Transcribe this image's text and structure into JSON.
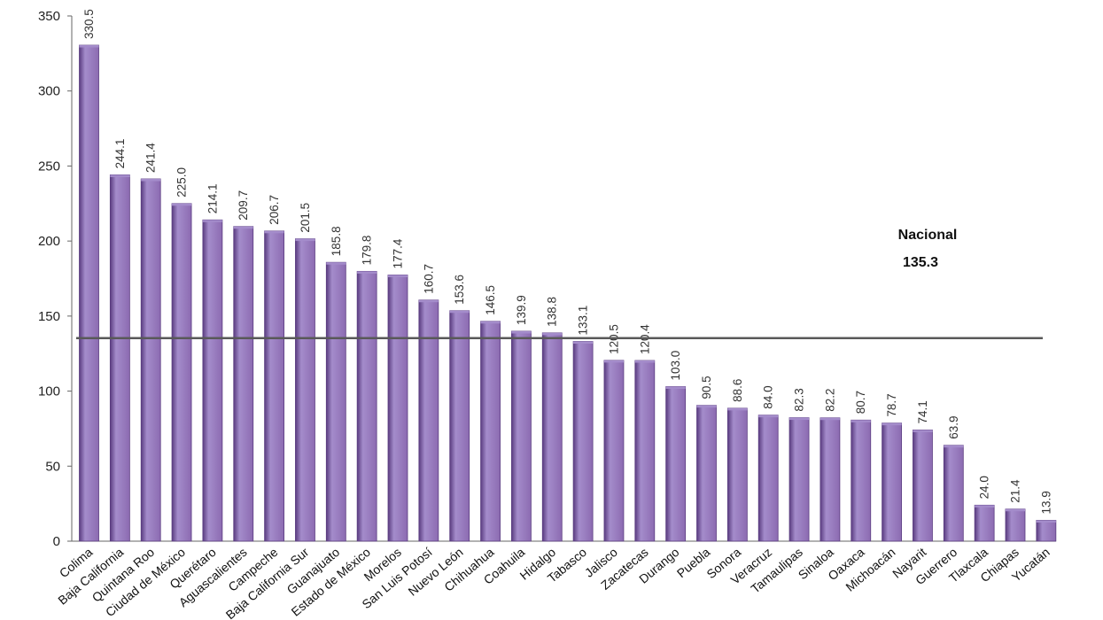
{
  "chart_data": {
    "type": "bar",
    "title": "",
    "xlabel": "",
    "ylabel": "",
    "ylim": [
      0,
      350
    ],
    "yticks": [
      0,
      50,
      100,
      150,
      200,
      250,
      300,
      350
    ],
    "grid": false,
    "categories": [
      "Colima",
      "Baja California",
      "Quintana Roo",
      "Ciudad de México",
      "Querétaro",
      "Aguascalientes",
      "Campeche",
      "Baja California Sur",
      "Guanajuato",
      "Estado de México",
      "Morelos",
      "San Luis Potosí",
      "Nuevo León",
      "Chihuahua",
      "Coahuila",
      "Hidalgo",
      "Tabasco",
      "Jalisco",
      "Zacatecas",
      "Durango",
      "Puebla",
      "Sonora",
      "Veracruz",
      "Tamaulipas",
      "Sinaloa",
      "Oaxaca",
      "Michoacán",
      "Nayarit",
      "Guerrero",
      "Tlaxcala",
      "Chiapas",
      "Yucatán"
    ],
    "values": [
      330.5,
      244.1,
      241.4,
      225.0,
      214.1,
      209.7,
      206.7,
      201.5,
      185.8,
      179.8,
      177.4,
      160.7,
      153.6,
      146.5,
      139.9,
      138.8,
      133.1,
      120.5,
      120.4,
      103.0,
      90.5,
      88.6,
      84.0,
      82.3,
      82.2,
      80.7,
      78.7,
      74.1,
      63.9,
      24.0,
      21.4,
      13.9
    ],
    "value_labels": [
      "330.5",
      "244.1",
      "241.4",
      "225.0",
      "214.1",
      "209.7",
      "206.7",
      "201.5",
      "185.8",
      "179.8",
      "177.4",
      "160.7",
      "153.6",
      "146.5",
      "139.9",
      "138.8",
      "133.1",
      "120.5",
      "120.4",
      "103.0",
      "90.5",
      "88.6",
      "84.0",
      "82.3",
      "82.2",
      "80.7",
      "78.7",
      "74.1",
      "63.9",
      "24.0",
      "21.4",
      "13.9"
    ],
    "reference_line": {
      "value": 135.3,
      "label": "Nacional",
      "value_label": "135.3"
    },
    "colors": {
      "bar": "#8c6bb1",
      "bar_light": "#a48ccb",
      "bar_dark": "#5a3c80",
      "reference_line": "#595959",
      "axis": "#666666"
    }
  }
}
